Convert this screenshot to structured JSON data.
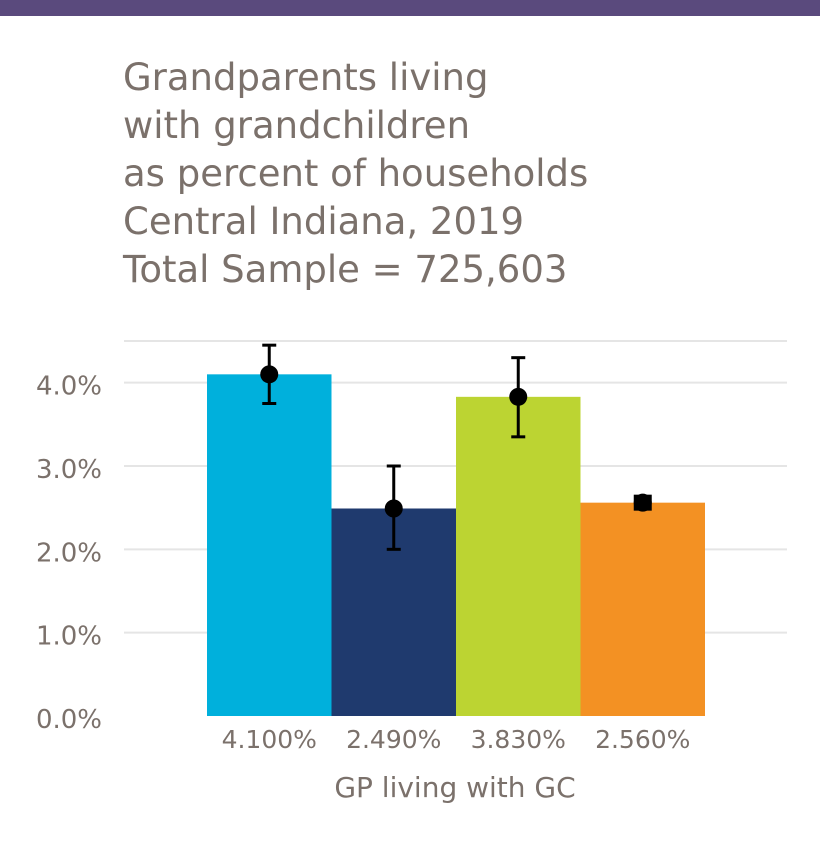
{
  "title_lines": [
    "Grandparents living",
    "with grandchildren",
    "as percent of households",
    "Central Indiana, 2019",
    "Total Sample = 725,603"
  ],
  "colors": {
    "top_band": "#5a4a7d",
    "text": "#7b716b",
    "grid": "#e5e5e5",
    "error_bar": "#000000"
  },
  "chart_data": {
    "type": "bar",
    "categories": [
      "4.100%",
      "2.490%",
      "3.830%",
      "2.560%"
    ],
    "values": [
      4.1,
      2.49,
      3.83,
      2.56
    ],
    "error_low": [
      3.75,
      2.0,
      3.35,
      2.56
    ],
    "error_high": [
      4.45,
      3.0,
      4.3,
      2.56
    ],
    "bar_colors": [
      "#00b0dc",
      "#1f3a6e",
      "#bcd432",
      "#f39123"
    ],
    "xlabel": "GP living with GC",
    "ylabel": "",
    "ylim": [
      0,
      4.5
    ],
    "yticks": [
      0,
      1,
      2,
      3,
      4
    ],
    "ytick_labels": [
      "0.0%",
      "1.0%",
      "2.0%",
      "3.0%",
      "4.0%"
    ],
    "grid": true,
    "legend": false
  }
}
